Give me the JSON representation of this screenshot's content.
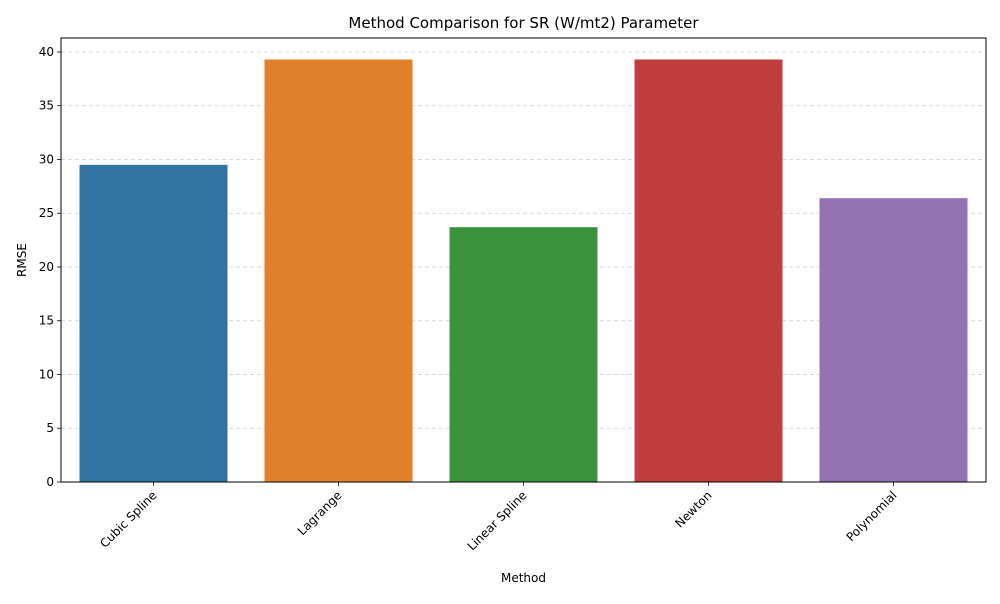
{
  "chart_data": {
    "type": "bar",
    "title": "Method Comparison for SR (W/mt2) Parameter",
    "xlabel": "Method",
    "ylabel": "RMSE",
    "categories": [
      "Cubic Spline",
      "Lagrange",
      "Linear Spline",
      "Newton",
      "Polynomial"
    ],
    "values": [
      29.5,
      39.3,
      23.7,
      39.3,
      26.4
    ],
    "colors": [
      "#3274a1",
      "#e1812c",
      "#3a923a",
      "#c03d3e",
      "#9372b2"
    ],
    "ylim": [
      0,
      41.3
    ],
    "yticks": [
      "0",
      "5",
      "10",
      "15",
      "20",
      "25",
      "30",
      "35",
      "40"
    ],
    "grid": "horizontal dashed",
    "legend": "none",
    "x_tick_rotation": "45 degrees"
  }
}
